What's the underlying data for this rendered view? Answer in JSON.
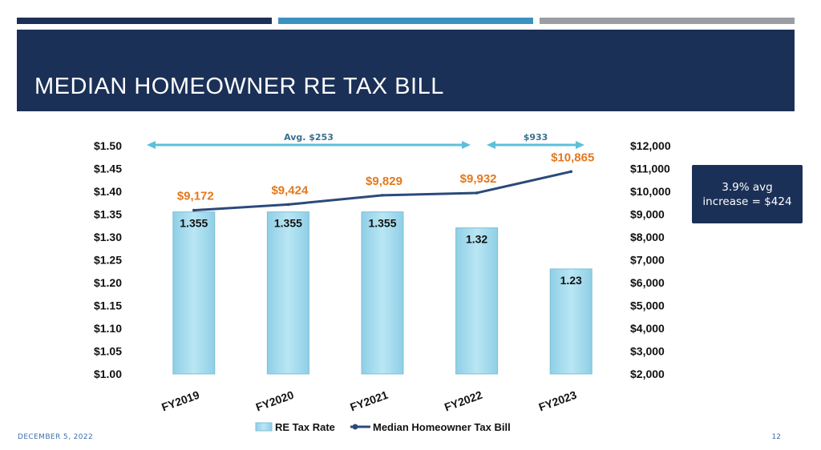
{
  "slide": {
    "title": "MEDIAN HOMEOWNER RE TAX BILL",
    "footer_date": "DECEMBER 5, 2022",
    "page_number": "12",
    "callout": "3.9% avg increase = $424"
  },
  "colors": {
    "navy": "#1b3057",
    "accent_blue": "#3c91c3",
    "gray": "#9a9ea3",
    "bar_fill": "#a6dcee",
    "bar_edge": "#7fbfd8",
    "line": "#2b4a7a",
    "value_orange": "#e2791e",
    "arrow": "#5cc0db"
  },
  "chart_data": {
    "type": "bar",
    "categories": [
      "FY2019",
      "FY2020",
      "FY2021",
      "FY2022",
      "FY2023"
    ],
    "series": [
      {
        "name": "RE Tax Rate",
        "type": "bar",
        "axis": "left",
        "values": [
          1.355,
          1.355,
          1.355,
          1.32,
          1.23
        ],
        "labels": [
          "1.355",
          "1.355",
          "1.355",
          "1.32",
          "1.23"
        ]
      },
      {
        "name": "Median Homeowner Tax Bill",
        "type": "line",
        "axis": "right",
        "values": [
          9172,
          9424,
          9829,
          9932,
          10865
        ],
        "labels": [
          "$9,172",
          "$9,424",
          "$9,829",
          "$9,932",
          "$10,865"
        ]
      }
    ],
    "y_left": {
      "lim": [
        1.0,
        1.5
      ],
      "ticks": [
        1.0,
        1.05,
        1.1,
        1.15,
        1.2,
        1.25,
        1.3,
        1.35,
        1.4,
        1.45,
        1.5
      ],
      "tick_labels": [
        "$1.00",
        "$1.05",
        "$1.10",
        "$1.15",
        "$1.20",
        "$1.25",
        "$1.30",
        "$1.35",
        "$1.40",
        "$1.45",
        "$1.50"
      ]
    },
    "y_right": {
      "lim": [
        2000,
        12000
      ],
      "ticks": [
        2000,
        3000,
        4000,
        5000,
        6000,
        7000,
        8000,
        9000,
        10000,
        11000,
        12000
      ],
      "tick_labels": [
        "$2,000",
        "$3,000",
        "$4,000",
        "$5,000",
        "$6,000",
        "$7,000",
        "$8,000",
        "$9,000",
        "$10,000",
        "$11,000",
        "$12,000"
      ]
    },
    "annotations": [
      {
        "text": "Avg. $253",
        "from_category": "FY2019",
        "to_category": "FY2022"
      },
      {
        "text": "$933",
        "from_category": "FY2022",
        "to_category": "FY2023"
      }
    ],
    "legend": {
      "position": "bottom",
      "entries": [
        "RE Tax Rate",
        "Median Homeowner Tax Bill"
      ]
    },
    "grid": false
  }
}
